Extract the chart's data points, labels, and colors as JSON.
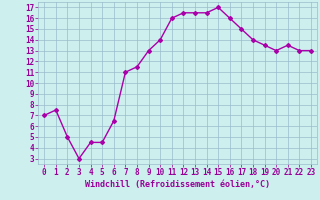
{
  "x": [
    0,
    1,
    2,
    3,
    4,
    5,
    6,
    7,
    8,
    9,
    10,
    11,
    12,
    13,
    14,
    15,
    16,
    17,
    18,
    19,
    20,
    21,
    22,
    23
  ],
  "y": [
    7.0,
    7.5,
    5.0,
    3.0,
    4.5,
    4.5,
    6.5,
    11.0,
    11.5,
    13.0,
    14.0,
    16.0,
    16.5,
    16.5,
    16.5,
    17.0,
    16.0,
    15.0,
    14.0,
    13.5,
    13.0,
    13.5,
    13.0,
    13.0
  ],
  "line_color": "#aa00aa",
  "marker": "D",
  "markersize": 2.0,
  "linewidth": 1.0,
  "xlabel": "Windchill (Refroidissement éolien,°C)",
  "xlabel_fontsize": 6,
  "bg_color": "#cdf0ee",
  "grid_color": "#99bbcc",
  "tick_color": "#990099",
  "label_color": "#990099",
  "xlim": [
    -0.5,
    23.5
  ],
  "ylim": [
    2.5,
    17.5
  ],
  "yticks": [
    3,
    4,
    5,
    6,
    7,
    8,
    9,
    10,
    11,
    12,
    13,
    14,
    15,
    16,
    17
  ],
  "xticks": [
    0,
    1,
    2,
    3,
    4,
    5,
    6,
    7,
    8,
    9,
    10,
    11,
    12,
    13,
    14,
    15,
    16,
    17,
    18,
    19,
    20,
    21,
    22,
    23
  ],
  "tick_fontsize": 5.5
}
